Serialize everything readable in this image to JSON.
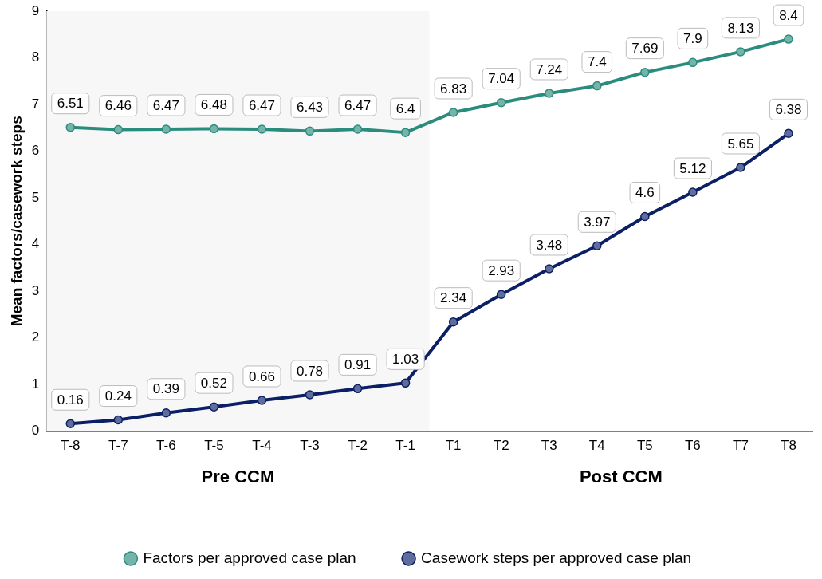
{
  "chart_data": {
    "type": "line",
    "ylabel": "Mean factors/casework steps",
    "categories": [
      "T-8",
      "T-7",
      "T-6",
      "T-5",
      "T-4",
      "T-3",
      "T-2",
      "T-1",
      "T1",
      "T2",
      "T3",
      "T4",
      "T5",
      "T6",
      "T7",
      "T8"
    ],
    "series": [
      {
        "name": "Factors per approved case plan",
        "color": "#2a8c7c",
        "values": [
          6.51,
          6.46,
          6.47,
          6.48,
          6.47,
          6.43,
          6.47,
          6.4,
          6.83,
          7.04,
          7.24,
          7.4,
          7.69,
          7.9,
          8.13,
          8.4
        ]
      },
      {
        "name": "Casework steps per approved case plan",
        "color": "#0b1f66",
        "values": [
          0.16,
          0.24,
          0.39,
          0.52,
          0.66,
          0.78,
          0.91,
          1.03,
          2.34,
          2.93,
          3.48,
          3.97,
          4.6,
          5.12,
          5.65,
          6.38
        ]
      }
    ],
    "ylim": [
      0,
      9
    ],
    "yticks": [
      0,
      1,
      2,
      3,
      4,
      5,
      6,
      7,
      8,
      9
    ],
    "grid": false,
    "legend": "bottom",
    "marker": "circle",
    "line_style": "solid",
    "data_labels": true,
    "bands": [
      {
        "axis": "x",
        "from": "T-8",
        "to": "T-1",
        "label": "Pre CCM",
        "color": "#f7f7f7"
      }
    ],
    "annotations": [
      "Post CCM"
    ]
  }
}
